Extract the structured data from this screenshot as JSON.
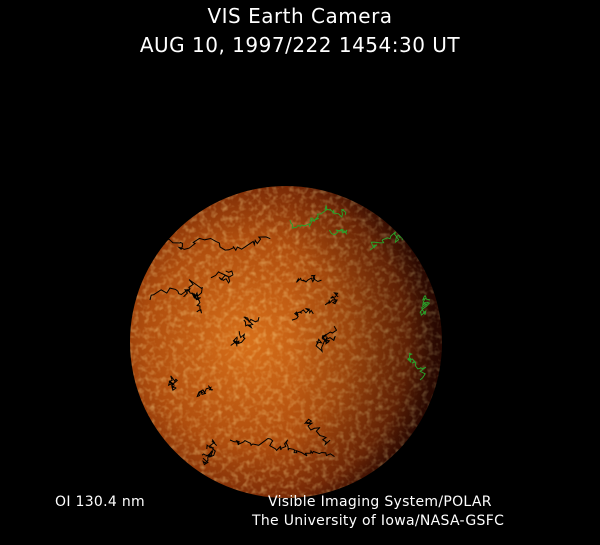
{
  "header": {
    "title": "VIS Earth Camera",
    "timestamp": "AUG 10, 1997/222 1454:30 UT"
  },
  "footer": {
    "wavelength": "OI  130.4 nm",
    "instrument": "Visible Imaging System/POLAR",
    "institution": "The University of Iowa/NASA-GSFC"
  },
  "colors": {
    "background": "#000000",
    "earth_bright": "#f08a20",
    "earth_dark": "#5a1a04",
    "coastline_night": "#000000",
    "coastline_day": "#2aa02a",
    "text": "#ffffff"
  }
}
